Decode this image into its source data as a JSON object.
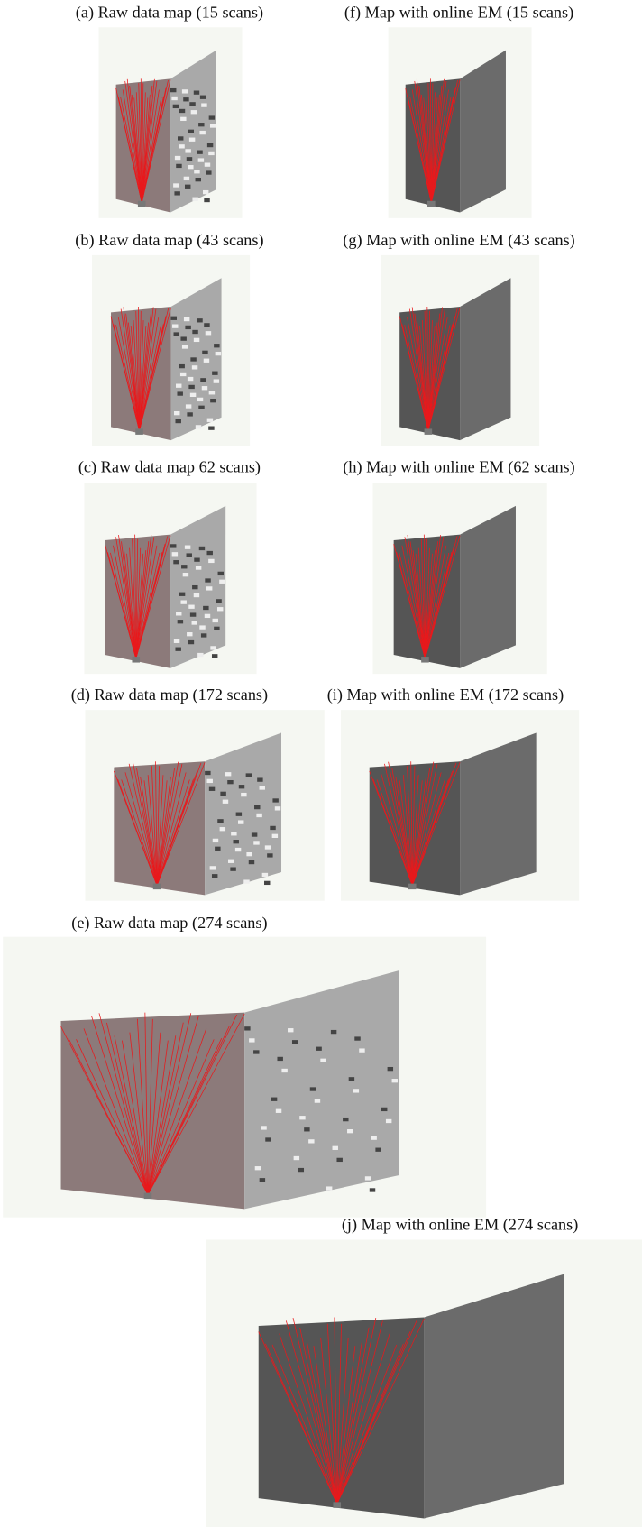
{
  "figure": {
    "panels": [
      {
        "caption": "(a) Raw data map (15 scans)"
      },
      {
        "caption": "(f) Map with online EM (15 scans)"
      },
      {
        "caption": "(b) Raw data map (43 scans)"
      },
      {
        "caption": "(g) Map with online EM (43 scans)"
      },
      {
        "caption": "(c) Raw data map 62 scans)"
      },
      {
        "caption": "(h) Map with online EM (62 scans)"
      },
      {
        "caption": "(d) Raw data map (172 scans)"
      },
      {
        "caption": "(i) Map with online EM (172 scans)"
      },
      {
        "caption": "(e) Raw data map (274 scans)"
      },
      {
        "caption": "(j) Map with online EM (274 scans)"
      }
    ]
  }
}
